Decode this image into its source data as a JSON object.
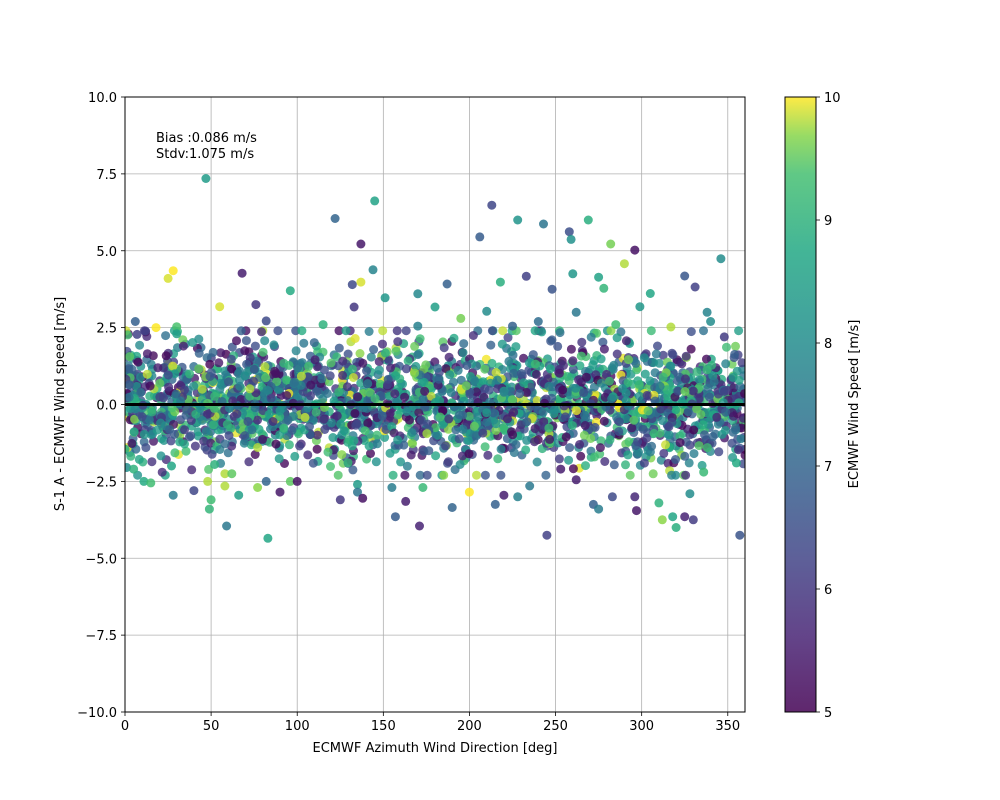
{
  "chart_data": {
    "type": "scatter",
    "title": "",
    "xlabel": "ECMWF Azimuth Wind Direction [deg]",
    "ylabel": "S-1 A - ECMWF Wind speed [m/s]",
    "xlim": [
      0,
      360
    ],
    "ylim": [
      -10,
      10
    ],
    "xticks": [
      0,
      50,
      100,
      150,
      200,
      250,
      300,
      350
    ],
    "xtick_labels": [
      "0",
      "50",
      "100",
      "150",
      "200",
      "250",
      "300",
      "350"
    ],
    "yticks": [
      -10,
      -7.5,
      -5,
      -2.5,
      0,
      2.5,
      5,
      7.5,
      10
    ],
    "ytick_labels": [
      "−10.0",
      "−7.5",
      "−5.0",
      "−2.5",
      "0.0",
      "2.5",
      "5.0",
      "7.5",
      "10.0"
    ],
    "grid": true,
    "annotation_lines": [
      "Bias :0.086 m/s",
      "Stdv:1.075 m/s"
    ],
    "zero_line": 0,
    "colorbar": {
      "label": "ECMWF Wind Speed [m/s]",
      "range": [
        5,
        10
      ],
      "ticks": [
        5,
        6,
        7,
        8,
        9,
        10
      ],
      "tick_labels": [
        "5",
        "6",
        "7",
        "8",
        "9",
        "10"
      ],
      "colormap": "viridis"
    },
    "points": [
      [
        47,
        7.35,
        8.4
      ],
      [
        145,
        6.62,
        8.6
      ],
      [
        213,
        6.48,
        6.3
      ],
      [
        122,
        6.05,
        7.0
      ],
      [
        228,
        6.0,
        8.2
      ],
      [
        269,
        6.0,
        8.9
      ],
      [
        258,
        5.62,
        6.5
      ],
      [
        243,
        5.87,
        7.4
      ],
      [
        259,
        5.37,
        8.1
      ],
      [
        206,
        5.45,
        6.8
      ],
      [
        137,
        5.22,
        5.4
      ],
      [
        282,
        5.22,
        9.6
      ],
      [
        296,
        5.02,
        5.3
      ],
      [
        346,
        4.74,
        8.0
      ],
      [
        144,
        4.38,
        7.8
      ],
      [
        68,
        4.27,
        5.5
      ],
      [
        28,
        4.35,
        10.0
      ],
      [
        25,
        4.1,
        9.9
      ],
      [
        260,
        4.25,
        8.3
      ],
      [
        275,
        4.14,
        8.6
      ],
      [
        290,
        4.58,
        9.8
      ],
      [
        325,
        4.18,
        6.7
      ],
      [
        233,
        4.17,
        6.2
      ],
      [
        218,
        3.98,
        8.9
      ],
      [
        137,
        3.98,
        9.9
      ],
      [
        187,
        3.92,
        6.9
      ],
      [
        132,
        3.9,
        6.4
      ],
      [
        331,
        3.82,
        6.2
      ],
      [
        170,
        3.6,
        7.9
      ],
      [
        55,
        3.18,
        9.9
      ],
      [
        96,
        3.7,
        8.8
      ],
      [
        151,
        3.47,
        8.3
      ],
      [
        248,
        3.75,
        6.6
      ],
      [
        278,
        3.78,
        9.1
      ],
      [
        305,
        3.61,
        8.7
      ],
      [
        76,
        3.25,
        6.0
      ],
      [
        133,
        3.17,
        6.0
      ],
      [
        180,
        3.17,
        8.5
      ],
      [
        210,
        3.03,
        8.0
      ],
      [
        262,
        3.0,
        7.5
      ],
      [
        299,
        3.18,
        8.3
      ],
      [
        338,
        3.0,
        7.8
      ],
      [
        82,
        2.72,
        6.4
      ],
      [
        6,
        2.7,
        6.9
      ],
      [
        18,
        2.5,
        10.0
      ],
      [
        30,
        2.53,
        9.4
      ],
      [
        115,
        2.6,
        9.0
      ],
      [
        195,
        2.8,
        9.6
      ],
      [
        240,
        2.7,
        7.2
      ],
      [
        340,
        2.7,
        8.0
      ],
      [
        7,
        2.28,
        6.2
      ],
      [
        30,
        2.3,
        8.5
      ],
      [
        170,
        2.55,
        7.7
      ],
      [
        225,
        2.55,
        6.9
      ],
      [
        285,
        2.6,
        9.3
      ],
      [
        317,
        2.52,
        9.8
      ],
      [
        348,
        2.2,
        6.1
      ],
      [
        0,
        -1.45,
        8.9
      ],
      [
        1,
        -2.05,
        8.0
      ],
      [
        5,
        -2.1,
        9.0
      ],
      [
        11,
        -2.5,
        8.8
      ],
      [
        15,
        -2.55,
        9.3
      ],
      [
        27,
        -2.0,
        8.7
      ],
      [
        28,
        -2.95,
        7.6
      ],
      [
        40,
        -2.8,
        6.3
      ],
      [
        48,
        -2.5,
        9.8
      ],
      [
        49,
        -3.4,
        9.1
      ],
      [
        50,
        -3.1,
        9.3
      ],
      [
        52,
        -1.95,
        9.0
      ],
      [
        58,
        -2.25,
        9.8
      ],
      [
        58,
        -2.65,
        9.8
      ],
      [
        59,
        -3.95,
        7.5
      ],
      [
        62,
        -2.25,
        9.5
      ],
      [
        66,
        -2.95,
        8.5
      ],
      [
        77,
        -2.7,
        9.7
      ],
      [
        82,
        -2.5,
        7.0
      ],
      [
        83,
        -4.35,
        8.7
      ],
      [
        90,
        -2.85,
        5.4
      ],
      [
        96,
        -2.5,
        9.5
      ],
      [
        100,
        -2.5,
        5.3
      ],
      [
        125,
        -3.1,
        6.0
      ],
      [
        135,
        -2.6,
        8.4
      ],
      [
        135,
        -2.85,
        7.4
      ],
      [
        138,
        -3.05,
        5.3
      ],
      [
        155,
        -2.7,
        7.6
      ],
      [
        157,
        -3.65,
        6.8
      ],
      [
        163,
        -3.15,
        5.5
      ],
      [
        171,
        -3.95,
        5.6
      ],
      [
        173,
        -2.7,
        9.2
      ],
      [
        190,
        -3.35,
        7.0
      ],
      [
        200,
        -2.85,
        10.0
      ],
      [
        215,
        -3.25,
        6.9
      ],
      [
        220,
        -2.95,
        5.5
      ],
      [
        228,
        -3.0,
        7.7
      ],
      [
        235,
        -2.65,
        7.5
      ],
      [
        245,
        -4.25,
        6.2
      ],
      [
        253,
        -2.1,
        5.5
      ],
      [
        262,
        -2.45,
        5.5
      ],
      [
        272,
        -3.25,
        6.9
      ],
      [
        275,
        -3.4,
        7.6
      ],
      [
        283,
        -3.0,
        6.4
      ],
      [
        296,
        -3.0,
        5.7
      ],
      [
        297,
        -3.45,
        5.4
      ],
      [
        310,
        -3.2,
        9.0
      ],
      [
        312,
        -3.75,
        9.7
      ],
      [
        318,
        -3.65,
        8.7
      ],
      [
        320,
        -4.0,
        8.9
      ],
      [
        325,
        -3.65,
        5.6
      ],
      [
        328,
        -2.9,
        8.0
      ],
      [
        330,
        -3.75,
        6.1
      ],
      [
        336,
        -2.2,
        9.2
      ],
      [
        355,
        -1.9,
        8.8
      ],
      [
        357,
        -4.25,
        6.6
      ]
    ],
    "dense_band": {
      "count": 2600,
      "x_range": [
        0,
        360
      ],
      "y_mean": 0.086,
      "y_std": 0.95,
      "color_range": [
        5,
        10
      ]
    }
  }
}
